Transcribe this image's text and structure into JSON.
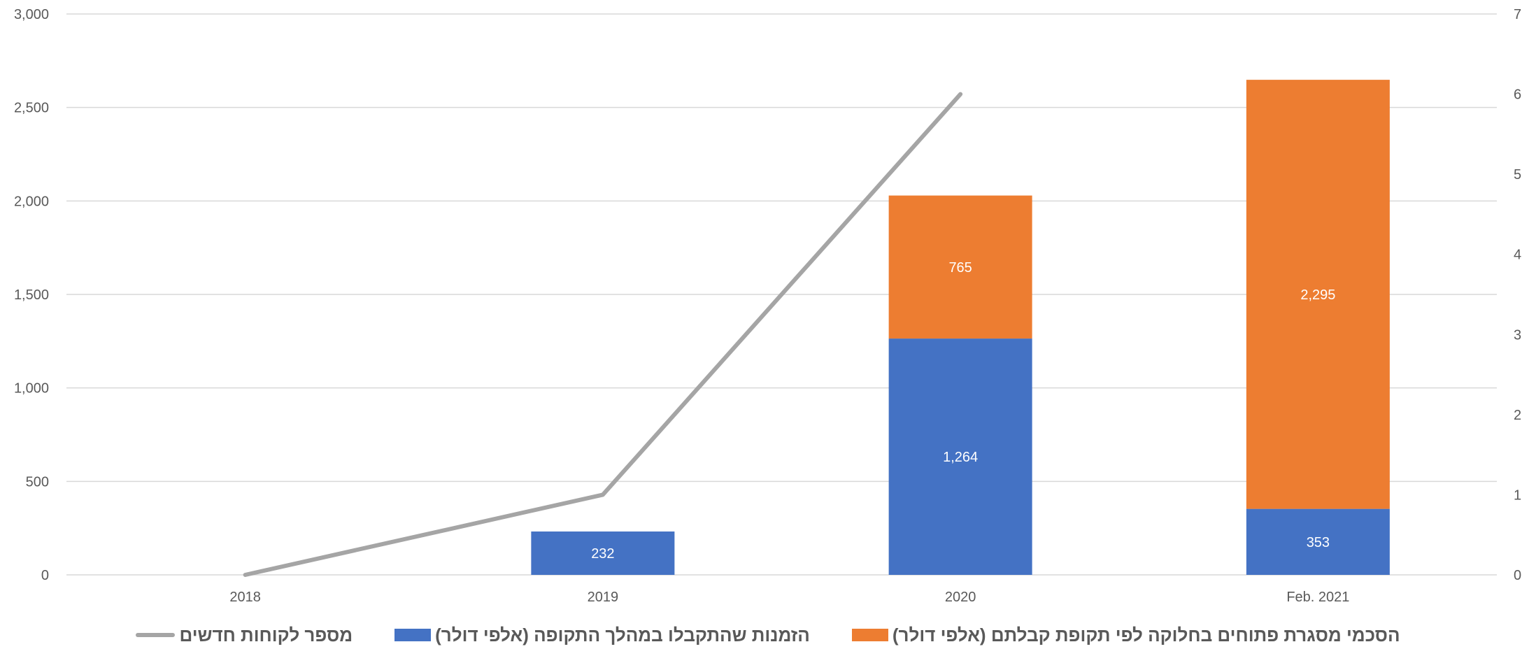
{
  "chart_data": {
    "type": "bar",
    "stacked": true,
    "categories": [
      "2018",
      "2019",
      "2020",
      "Feb. 2021"
    ],
    "series": [
      {
        "name": "הזמנות שהתקבלו במהלך התקופה (אלפי דולר)",
        "type": "bar",
        "axis": "left",
        "color": "#4472C4",
        "values": [
          0,
          232,
          1264,
          353
        ],
        "labels": [
          "",
          "232",
          "1,264",
          "353"
        ]
      },
      {
        "name": "הסכמי מסגרת פתוחים בחלוקה לפי תקופת קבלתם (אלפי דולר)",
        "type": "bar",
        "axis": "left",
        "color": "#ED7D31",
        "values": [
          0,
          0,
          765,
          2295
        ],
        "labels": [
          "",
          "",
          "765",
          "2,295"
        ]
      },
      {
        "name": "מספר לקוחות חדשים",
        "type": "line",
        "axis": "right",
        "color": "#A5A5A5",
        "values": [
          0,
          1,
          6,
          null
        ]
      }
    ],
    "y_left": {
      "min": 0,
      "max": 3000,
      "ticks": [
        "0",
        "500",
        "1,000",
        "1,500",
        "2,000",
        "2,500",
        "3,000"
      ]
    },
    "y_right": {
      "min": 0,
      "max": 7,
      "ticks": [
        "0",
        "1",
        "2",
        "3",
        "4",
        "5",
        "6",
        "7"
      ]
    },
    "grid": true,
    "legend_position": "bottom",
    "legend_order": [
      "מספר לקוחות חדשים",
      "הזמנות שהתקבלו במהלך התקופה (אלפי דולר)",
      "הסכמי מסגרת פתוחים בחלוקה לפי תקופת קבלתם (אלפי דולר)"
    ],
    "colors": {
      "gridline": "#D9D9D9",
      "axis_text": "#595959",
      "label_text": "#FFFFFF"
    }
  }
}
